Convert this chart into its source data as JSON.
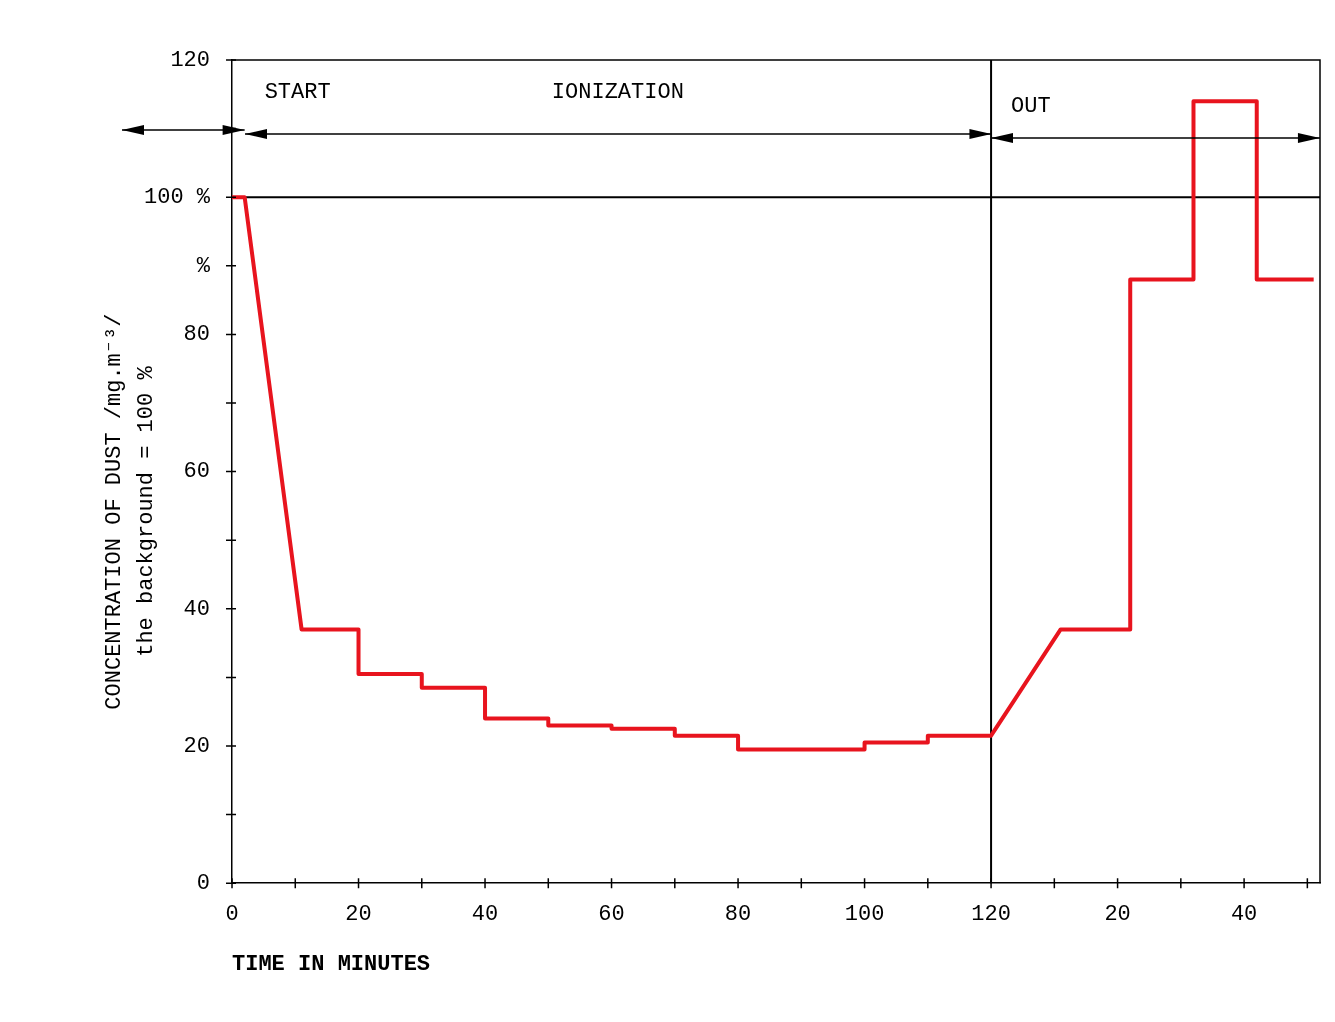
{
  "chart_data": {
    "type": "line",
    "xlabel": "TIME IN MINUTES",
    "ylabel": "CONCENTRATION OF DUST /mg.m⁻³/\nthe background = 100 %",
    "x": [
      0,
      2,
      11,
      20,
      20,
      30,
      30,
      40,
      40,
      50,
      50,
      60,
      60,
      70,
      70,
      80,
      80,
      100,
      100,
      110,
      110,
      120,
      131,
      142,
      142,
      152,
      152,
      162,
      162,
      171
    ],
    "series": [
      {
        "color": "#e8141e",
        "values": [
          100,
          100,
          37,
          37,
          30.5,
          30.5,
          28.5,
          28.5,
          24,
          24,
          23,
          23,
          22.5,
          22.5,
          21.5,
          21.5,
          19.5,
          19.5,
          20.5,
          20.5,
          21.5,
          21.5,
          37,
          37,
          88,
          88,
          114,
          114,
          88,
          88
        ]
      }
    ],
    "xlim": [
      0,
      172
    ],
    "ylim": [
      0,
      120
    ],
    "xticks": [
      0,
      {
        "value": 10,
        "label": null
      },
      20,
      {
        "value": 30,
        "label": null
      },
      40,
      {
        "value": 50,
        "label": null
      },
      60,
      {
        "value": 70,
        "label": null
      },
      80,
      {
        "value": 90,
        "label": null
      },
      100,
      {
        "value": 110,
        "label": null
      },
      120
    ],
    "x2lim": [
      -120,
      52
    ],
    "x2ticks": [
      {
        "value": 10,
        "label": null
      },
      20,
      {
        "value": 30,
        "label": null
      },
      40,
      {
        "value": 50,
        "label": null
      }
    ],
    "yticks": [
      0,
      {
        "value": 10,
        "label": null
      },
      20,
      {
        "value": 30,
        "label": null
      },
      40,
      {
        "value": 50,
        "label": null
      },
      60,
      {
        "value": 70,
        "label": null
      },
      80,
      {
        "value": 90,
        "label": "%"
      },
      {
        "value": 100,
        "label": "100 %"
      },
      {
        "value": 110,
        "label": null
      },
      120
    ],
    "ref_lines": [
      {
        "axis": "y",
        "value": 100,
        "color": "#000000"
      },
      {
        "axis": "x",
        "value": 120,
        "color": "#000000"
      }
    ],
    "annotations": [
      "START",
      "IONIZATION",
      "OUT"
    ],
    "legend": false,
    "marker": "none",
    "line_style": "solid"
  }
}
